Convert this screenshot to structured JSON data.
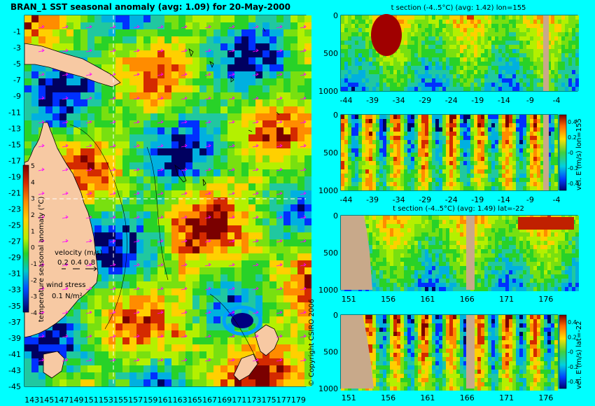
{
  "main_title": "BRAN_1 SST seasonal anomaly (avg: 1.09) for 20-May-2000",
  "copyright": "© Copyright CSIRO 2006",
  "colors": {
    "background": "#00ffff",
    "land": "#f7c9a3",
    "section_land": "#c8a98a",
    "crosshair": "#ffffff",
    "arrows": "#ff00ff",
    "coast": "#000000"
  },
  "chart_data": [
    {
      "type": "heatmap",
      "title": "BRAN_1 SST seasonal anomaly (avg: 1.09) for 20-May-2000",
      "x_ticks": [
        "143",
        "145",
        "147",
        "149",
        "151",
        "153",
        "155",
        "157",
        "159",
        "161",
        "163",
        "165",
        "167",
        "169",
        "171",
        "173",
        "175",
        "177",
        "179"
      ],
      "y_ticks": [
        "-1",
        "-3",
        "-5",
        "-7",
        "-9",
        "-11",
        "-13",
        "-15",
        "-17",
        "-19",
        "-21",
        "-23",
        "-25",
        "-27",
        "-29",
        "-31",
        "-33",
        "-35",
        "-37",
        "-39",
        "-41",
        "-43",
        "-45"
      ],
      "xlim": [
        142,
        180
      ],
      "ylim": [
        -45,
        1
      ],
      "crosshair": {
        "lon": 155,
        "lat": -22
      },
      "colorbar": {
        "label": "temperature seasonal anomaly (°C)",
        "ticks": [
          "5",
          "4",
          "3",
          "2",
          "1",
          "0",
          "-1",
          "-2",
          "-3",
          "-4"
        ],
        "range": [
          -4,
          5
        ]
      },
      "legend": {
        "velocity_label": "velocity (m/s)",
        "velocity_values": "0.2 0.4 0.8",
        "wind_label": "wind stress",
        "wind_value": "0.1 N/m²"
      }
    },
    {
      "type": "heatmap",
      "title": "t section (-4..5°C) (avg: 1.42) lon=155",
      "x_ticks": [
        "-44",
        "-39",
        "-34",
        "-29",
        "-24",
        "-19",
        "-14",
        "-9",
        "-4"
      ],
      "y_ticks": [
        "0",
        "500",
        "1000"
      ],
      "xlim": [
        -45,
        0
      ],
      "ylim": [
        1000,
        0
      ]
    },
    {
      "type": "heatmap",
      "title": "",
      "x_ticks": [
        "-44",
        "-39",
        "-34",
        "-29",
        "-24",
        "-19",
        "-14",
        "-9",
        "-4"
      ],
      "y_ticks": [
        "0",
        "500",
        "1000"
      ],
      "xlim": [
        -45,
        0
      ],
      "ylim": [
        1000,
        0
      ],
      "colorbar": {
        "label": "vel. E (m/s) lon=155",
        "ticks": [
          "0.4",
          "0.2",
          "-0",
          "-0.2",
          "-0.4"
        ],
        "range": [
          -0.4,
          0.4
        ]
      }
    },
    {
      "type": "heatmap",
      "title": "t section (-4..5°C) (avg: 1.49) lat=-22",
      "x_ticks": [
        "151",
        "156",
        "161",
        "166",
        "171",
        "176"
      ],
      "y_ticks": [
        "0",
        "500",
        "1000"
      ],
      "xlim": [
        150,
        180
      ],
      "ylim": [
        1000,
        0
      ]
    },
    {
      "type": "heatmap",
      "title": "",
      "x_ticks": [
        "151",
        "156",
        "161",
        "166",
        "171",
        "176"
      ],
      "y_ticks": [
        "0",
        "500",
        "1000"
      ],
      "xlim": [
        150,
        180
      ],
      "ylim": [
        1000,
        0
      ],
      "colorbar": {
        "label": "vel. E (m/s) lat=-22",
        "ticks": [
          "0.4",
          "0.2",
          "-0",
          "-0.2",
          "-0.4"
        ],
        "range": [
          -0.4,
          0.4
        ]
      }
    }
  ]
}
